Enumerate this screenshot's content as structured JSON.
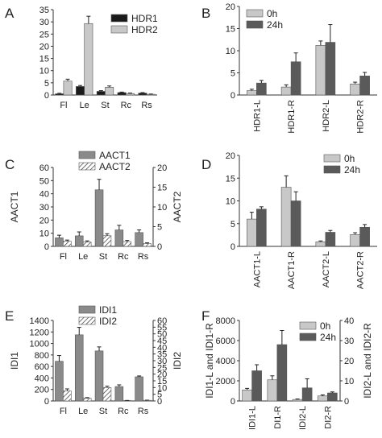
{
  "chart_data": [
    {
      "panel": "A",
      "type": "bar",
      "categories": [
        "Fl",
        "Le",
        "St",
        "Rc",
        "Rs"
      ],
      "ylim": [
        0,
        35
      ],
      "yticks": [
        0,
        5,
        10,
        15,
        20,
        25,
        30,
        35
      ],
      "series": [
        {
          "name": "HDR1",
          "color": "#1a1a1a",
          "values": [
            0.5,
            3.5,
            1.5,
            1.0,
            0.8
          ],
          "errors": [
            0.2,
            0.4,
            0.3,
            0.2,
            0.2
          ]
        },
        {
          "name": "HDR2",
          "color": "#c8c8c8",
          "values": [
            5.7,
            29.3,
            3.2,
            0.6,
            0.3
          ],
          "errors": [
            0.8,
            3.0,
            0.5,
            0.2,
            0.1
          ]
        }
      ],
      "legend": "top-right"
    },
    {
      "panel": "B",
      "type": "bar",
      "categories": [
        "HDR1-L",
        "HDR1-R",
        "HDR2-L",
        "HDR2-R"
      ],
      "ylim": [
        0,
        20
      ],
      "yticks": [
        0,
        5,
        10,
        15,
        20
      ],
      "series": [
        {
          "name": "0h",
          "color": "#c8c8c8",
          "values": [
            1.0,
            1.8,
            11.2,
            2.5
          ],
          "errors": [
            0.3,
            0.5,
            1.0,
            0.4
          ]
        },
        {
          "name": "24h",
          "color": "#5a5a5a",
          "values": [
            2.7,
            7.5,
            11.9,
            4.3
          ],
          "errors": [
            0.6,
            2.0,
            4.0,
            0.8
          ]
        }
      ],
      "legend": "top-left"
    },
    {
      "panel": "C",
      "type": "bar",
      "categories": [
        "Fl",
        "Le",
        "St",
        "Rc",
        "Rs"
      ],
      "ylabel": "AACT1",
      "y2label": "AACT2",
      "ylim": [
        0,
        60
      ],
      "yticks": [
        0,
        10,
        20,
        30,
        40,
        50,
        60
      ],
      "y2lim": [
        0,
        20
      ],
      "y2ticks": [
        0,
        5,
        10,
        15,
        20
      ],
      "series": [
        {
          "name": "AACT1",
          "color": "#8a8a8a",
          "axis": "left",
          "values": [
            6.5,
            8.0,
            43.0,
            12.5,
            10.5
          ],
          "errors": [
            2.0,
            3.0,
            8.0,
            3.5,
            2.0
          ]
        },
        {
          "name": "AACT2",
          "color": "hatch",
          "axis": "right",
          "values": [
            1.3,
            1.1,
            2.7,
            1.2,
            0.7
          ],
          "errors": [
            0.3,
            0.3,
            0.5,
            0.3,
            0.2
          ]
        }
      ],
      "legend": "top"
    },
    {
      "panel": "D",
      "type": "bar",
      "categories": [
        "AACT1-L",
        "AACT1-R",
        "AACT2-L",
        "AACT2-R"
      ],
      "ylim": [
        0,
        20
      ],
      "yticks": [
        0,
        5,
        10,
        15,
        20
      ],
      "series": [
        {
          "name": "0h",
          "color": "#c8c8c8",
          "values": [
            6.0,
            13.0,
            1.0,
            2.6
          ],
          "errors": [
            1.5,
            2.5,
            0.2,
            0.4
          ]
        },
        {
          "name": "24h",
          "color": "#5a5a5a",
          "values": [
            8.2,
            10.0,
            3.1,
            4.2
          ],
          "errors": [
            0.5,
            2.0,
            0.4,
            0.6
          ]
        }
      ],
      "legend": "top-right"
    },
    {
      "panel": "E",
      "type": "bar",
      "categories": [
        "Fl",
        "Le",
        "St",
        "Rc",
        "Rs"
      ],
      "ylabel": "IDI1",
      "y2label": "IDI2",
      "ylim": [
        0,
        1400
      ],
      "yticks": [
        0,
        200,
        400,
        600,
        800,
        1000,
        1200,
        1400
      ],
      "y2lim": [
        0,
        60
      ],
      "y2ticks": [
        0,
        5,
        10,
        15,
        20,
        25,
        30,
        35,
        40,
        45,
        50,
        55,
        60
      ],
      "series": [
        {
          "name": "IDI1",
          "color": "#8a8a8a",
          "axis": "left",
          "values": [
            690,
            1150,
            870,
            250,
            420
          ],
          "errors": [
            100,
            130,
            70,
            30,
            15
          ]
        },
        {
          "name": "IDI2",
          "color": "hatch",
          "axis": "right",
          "values": [
            7.5,
            2.0,
            10.0,
            0.3,
            0.5
          ],
          "errors": [
            1.5,
            0.5,
            1.0,
            0.1,
            0.1
          ]
        }
      ],
      "legend": "top"
    },
    {
      "panel": "F",
      "type": "bar",
      "categories": [
        "IDI1-L",
        "DI1-R",
        "IDI2-L",
        "DI2-R"
      ],
      "ylabel": "IDI1-L and IDI1-R",
      "y2label": "IDI2-L and IDI2-R",
      "ylim": [
        0,
        8000
      ],
      "yticks": [
        0,
        2000,
        4000,
        6000,
        8000
      ],
      "y2lim": [
        0,
        40
      ],
      "y2ticks": [
        0,
        10,
        20,
        30,
        40
      ],
      "series": [
        {
          "name": "0h",
          "color": "#c8c8c8",
          "values": [
            1100,
            2100,
            150,
            500
          ],
          "errors": [
            150,
            400,
            50,
            100
          ]
        },
        {
          "name": "24h",
          "color": "#5a5a5a",
          "values": [
            3000,
            5600,
            1300,
            800
          ],
          "errors": [
            600,
            1400,
            900,
            100
          ]
        }
      ],
      "legend": "top"
    }
  ]
}
